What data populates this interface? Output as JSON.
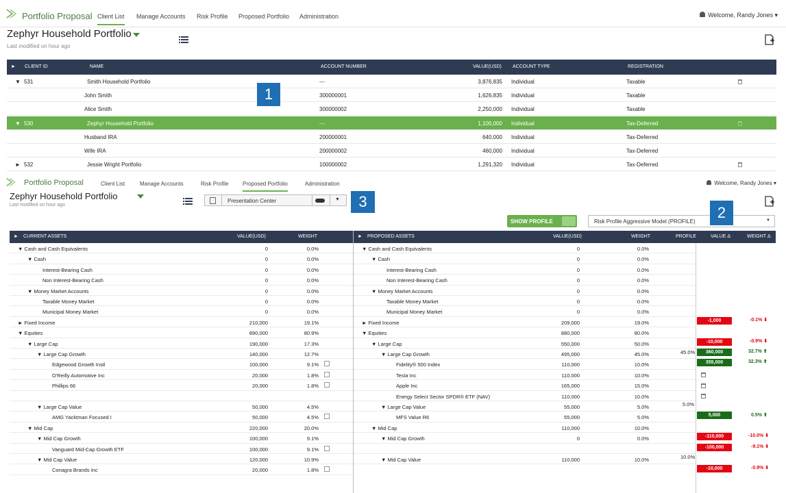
{
  "top": {
    "app_name": "Portfolio Proposal",
    "nav": [
      "Client List",
      "Manage Accounts",
      "Risk Profile",
      "Proposed Portfolio",
      "Administration"
    ],
    "welcome": "Welcome, Randy Jones",
    "title": "Zephyr Household Portfolio",
    "subtitle": "Last modified on hour ago"
  },
  "client_table": {
    "headers": [
      "CLIENT ID",
      "NAME",
      "ACCOUNT NUMBER",
      "VALUE(USD)",
      "ACCOUNT TYPE",
      "REGISTRATION"
    ],
    "rows": [
      {
        "id": "531",
        "name": "Smith Household Portfolio",
        "account": "---",
        "value": "3,876,835",
        "type": "Individual",
        "reg": "Taxable"
      },
      {
        "id": "",
        "name": "John Smith",
        "account": "300000001",
        "value": "1,626,835",
        "type": "Individual",
        "reg": "Taxable"
      },
      {
        "id": "",
        "name": "Alice Smith",
        "account": "300000002",
        "value": "2,250,000",
        "type": "Individual",
        "reg": "Taxable"
      },
      {
        "id": "530",
        "name": "Zephyr Household Portfolio",
        "account": "---",
        "value": "1,100,000",
        "type": "Individual",
        "reg": "Tax-Deferred"
      },
      {
        "id": "",
        "name": "Husband IRA",
        "account": "200000001",
        "value": "640,000",
        "type": "Individual",
        "reg": "Tax-Deferred"
      },
      {
        "id": "",
        "name": "Wife IRA",
        "account": "200000002",
        "value": "460,000",
        "type": "Individual",
        "reg": "Tax-Deferred"
      },
      {
        "id": "532",
        "name": "Jessie Wright Portfolio",
        "account": "100000002",
        "value": "1,291,320",
        "type": "Individual",
        "reg": "Tax-Deferred"
      }
    ]
  },
  "callouts": [
    "1",
    "2",
    "3"
  ],
  "bottom": {
    "app_name": "Portfolio Proposal",
    "nav": [
      "Client List",
      "Manage Accounts",
      "Risk Profile",
      "Proposed Portfolio",
      "Administration"
    ],
    "welcome": "Welcome, Randy Jones",
    "title": "Zephyr Household Portfolio",
    "subtitle": "Last modified on hour ago",
    "presentation": "Presentation Center",
    "show_profile": "SHOW PROFILE",
    "risk_select": "Risk Profile Aggressive Model (PROFILE)"
  },
  "current": {
    "headers": [
      "CURRENT ASSETS",
      "VALUE(USD)",
      "WEIGHT"
    ],
    "rows": [
      [
        "▼ Cash and Cash Equivalents",
        "0",
        "0.0%"
      ],
      [
        "▼ Cash",
        "0",
        "0.0%"
      ],
      [
        "Interest-Bearing Cash",
        "0",
        "0.0%"
      ],
      [
        "Non Interest-Bearing Cash",
        "0",
        "0.0%"
      ],
      [
        "▼ Money Market Accounts",
        "0",
        "0.0%"
      ],
      [
        "Taxable Money Market",
        "0",
        "0.0%"
      ],
      [
        "Municipal Money Market",
        "0",
        "0.0%"
      ],
      [
        "► Fixed Income",
        "210,000",
        "19.1%"
      ],
      [
        "▼ Equities",
        "890,000",
        "80.9%"
      ],
      [
        "▼ Large Cap",
        "190,000",
        "17.3%"
      ],
      [
        "▼ Large Cap Growth",
        "140,000",
        "12.7%"
      ],
      [
        "Edgewood Growth Instl",
        "100,000",
        "9.1%"
      ],
      [
        "O'Reilly Automotive Inc",
        "20,000",
        "1.8%"
      ],
      [
        "Phillips 66",
        "20,000",
        "1.8%"
      ],
      [
        "",
        "",
        ""
      ],
      [
        "▼ Large Cap Value",
        "50,000",
        "4.5%"
      ],
      [
        "AMG Yacktman Focused I",
        "50,000",
        "4.5%"
      ],
      [
        "▼ Mid Cap",
        "220,000",
        "20.0%"
      ],
      [
        "▼ Mid Cap Growth",
        "100,000",
        "9.1%"
      ],
      [
        "Vanguard Mid-Cap Growth ETF",
        "100,000",
        "9.1%"
      ],
      [
        "▼ Mid Cap Value",
        "120,000",
        "10.9%"
      ],
      [
        "Conagra Brands Inc",
        "20,000",
        "1.8%"
      ]
    ]
  },
  "proposed": {
    "headers": [
      "PROPOSED ASSETS",
      "VALUE(USD)",
      "WEIGHT",
      "PROFILE",
      "VALUE Δ",
      "WEIGHT Δ"
    ],
    "rows": [
      [
        "▼ Cash and Cash Equivalents",
        "0",
        "0.0%"
      ],
      [
        "▼ Cash",
        "0",
        "0.0%"
      ],
      [
        "Interest-Bearing Cash",
        "0",
        "0.0%"
      ],
      [
        "Non Interest-Bearing Cash",
        "0",
        "0.0%"
      ],
      [
        "▼ Money Market Accounts",
        "0",
        "0.0%"
      ],
      [
        "Taxable Money Market",
        "0",
        "0.0%"
      ],
      [
        "Municipal Money Market",
        "0",
        "0.0%"
      ],
      [
        "► Fixed Income",
        "209,000",
        "19.0%"
      ],
      [
        "▼ Equities",
        "880,000",
        "80.0%"
      ],
      [
        "▼ Large Cap",
        "550,000",
        "50.0%"
      ],
      [
        "▼ Large Cap Growth",
        "495,000",
        "45.0%"
      ],
      [
        "Fidelity® 500 Index",
        "110,000",
        "10.0%"
      ],
      [
        "Tesla Inc",
        "110,000",
        "10.0%"
      ],
      [
        "Apple Inc",
        "165,000",
        "15.0%"
      ],
      [
        "Energy Select Sector SPDR® ETF (NAV)",
        "110,000",
        "10.0%"
      ],
      [
        "▼ Large Cap Value",
        "55,000",
        "5.0%"
      ],
      [
        "MFS Value R6",
        "55,000",
        "5.0%"
      ],
      [
        "▼ Mid Cap",
        "110,000",
        "10.0%"
      ],
      [
        "▼ Mid Cap Growth",
        "0",
        "0.0%"
      ],
      [
        "",
        "",
        ""
      ],
      [
        "▼ Mid Cap Value",
        "110,000",
        "10.0%"
      ]
    ],
    "profile_values": {
      "p1": "45.0%",
      "p2": "5.0%",
      "p3": "10.0%"
    },
    "deltas": {
      "d1v": "-1,000",
      "d1w": "-0.1% ⬇",
      "d2v": "-10,000",
      "d2w": "-0.9% ⬇",
      "d3v": "360,000",
      "d3w": "32.7% ⬆",
      "d4v": "355,000",
      "d4w": "32.3% ⬆",
      "d5v": "5,000",
      "d5w": "0.5% ⬆",
      "d6v": "-110,000",
      "d6w": "-10.0% ⬇",
      "d7v": "-100,000",
      "d7w": "-9.1% ⬇",
      "d8v": "-10,000",
      "d8w": "-0.9% ⬇"
    }
  }
}
